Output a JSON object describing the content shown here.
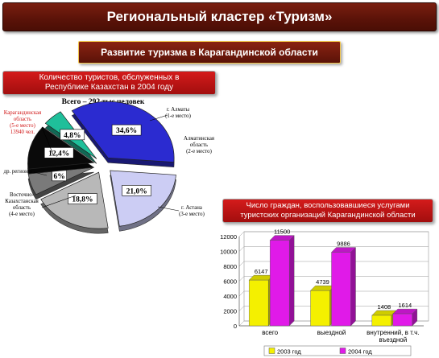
{
  "header": {
    "title": "Региональный кластер «Туризм»",
    "subtitle": "Развитие туризма в Карагандинской области"
  },
  "chart_data": [
    {
      "type": "pie",
      "title": "Количество туристов, обслуженных в Республике Казахстан в 2004 году",
      "subtitle": "Всего – 292 тыс.человек",
      "slices": [
        {
          "label": "г. Алматы (1-е место)",
          "value": 34.6,
          "value_label": "34,6%",
          "color": "#2b2bd0"
        },
        {
          "label": "Алматинская область (2-е место)",
          "value": 21.0,
          "value_label": "21,0%",
          "color": "#cccdf4"
        },
        {
          "label": "г. Астана (3-е место)",
          "value": 18.8,
          "value_label": "18,8%",
          "color": "#b8b8b8"
        },
        {
          "label": "Восточно-Казахстанская область (4-е место)",
          "value": 6.0,
          "value_label": "6%",
          "color": "#7a7a7a"
        },
        {
          "label": "др. регионы",
          "value": 12.4,
          "value_label": "12,4%",
          "color": "#0a0a0a"
        },
        {
          "label": "Карагандинская область (5-е место) 13940 чел.",
          "value": 4.8,
          "value_label": "4,8%",
          "color": "#1fbf9a"
        }
      ]
    },
    {
      "type": "bar",
      "title": "Число граждан, воспользовавшиеся услугами туристских организаций Карагандинской области",
      "categories": [
        "всего",
        "выездной",
        "внутренний, в т.ч. въездной"
      ],
      "series": [
        {
          "name": "2003 год",
          "values": [
            6147,
            4739,
            1408
          ],
          "color": "#f4f000"
        },
        {
          "name": "2004 год",
          "values": [
            11500,
            9886,
            1614
          ],
          "color": "#e01ae8"
        }
      ],
      "ylim": [
        0,
        12000
      ],
      "yticks": [
        0,
        2000,
        4000,
        6000,
        8000,
        10000,
        12000
      ],
      "legend": "bottom"
    }
  ]
}
